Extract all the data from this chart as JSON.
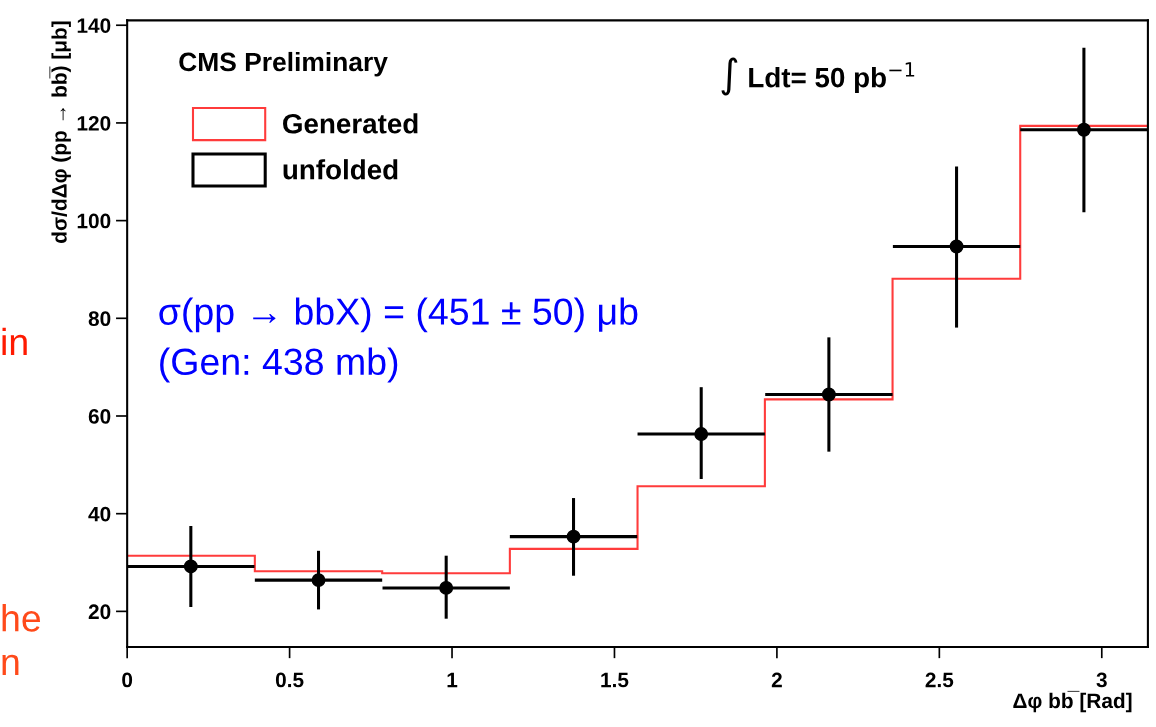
{
  "chart_data": {
    "type": "histogram",
    "xlabel": "Δφ bb̅ [Rad]",
    "ylabel": "dσ/dΔφ (pp → bb̅) [μb]",
    "bins": [
      0,
      0.393,
      0.785,
      1.178,
      1.571,
      1.963,
      2.356,
      2.749,
      3.142
    ],
    "series": [
      {
        "name": "Generated",
        "color": "#ff3b3b",
        "values": [
          31.4,
          28.2,
          27.8,
          32.8,
          45.6,
          63.4,
          88.1,
          119.4
        ]
      },
      {
        "name": "unfolded",
        "type": "scatter",
        "color": "#000000",
        "x": [
          0.196,
          0.589,
          0.982,
          1.374,
          1.767,
          2.16,
          2.553,
          2.945
        ],
        "values": [
          29.2,
          26.4,
          24.8,
          35.3,
          56.3,
          64.4,
          94.7,
          118.6
        ],
        "errors": [
          [
            20.9,
            37.5
          ],
          [
            20.4,
            32.4
          ],
          [
            18.5,
            31.4
          ],
          [
            27.3,
            43.2
          ],
          [
            47.1,
            65.9
          ],
          [
            52.7,
            76.1
          ],
          [
            78.1,
            111.1
          ],
          [
            101.7,
            135.4
          ]
        ],
        "xerrors": [
          0.196,
          0.196,
          0.196,
          0.196,
          0.196,
          0.196,
          0.196,
          0.196
        ]
      }
    ],
    "xlim": [
      0,
      3.142
    ],
    "xticks": [
      0,
      0.5,
      1,
      1.5,
      2,
      2.5,
      3
    ],
    "ylim": [
      12.7,
      141
    ],
    "yticks": [
      20,
      40,
      60,
      80,
      100,
      120,
      140
    ],
    "legend": "top left",
    "marker": "circle",
    "grid": false,
    "annotations": [
      "CMS Preliminary",
      "∫ Ldt= 50 pb$^{−1}$",
      "σ(pp → bbX) = (451 ± 50) μb",
      "(Gen: 438 mb)",
      "in",
      "he",
      "n"
    ]
  }
}
